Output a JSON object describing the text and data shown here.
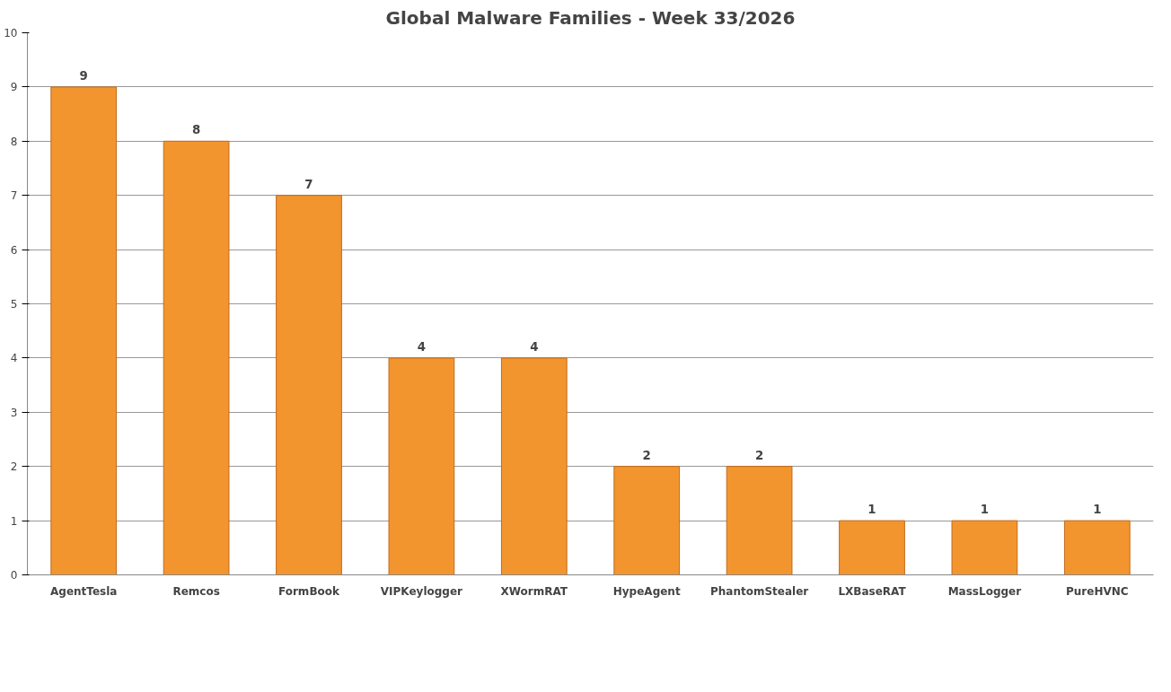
{
  "chart_data": {
    "type": "bar",
    "title": "Global Malware Families - Week 33/2026",
    "categories": [
      "AgentTesla",
      "Remcos",
      "FormBook",
      "VIPKeylogger",
      "XWormRAT",
      "HypeAgent",
      "PhantomStealer",
      "LXBaseRAT",
      "MassLogger",
      "PureHVNC"
    ],
    "values": [
      9,
      8,
      7,
      4,
      4,
      2,
      2,
      1,
      1,
      1
    ],
    "color": "#f3952e",
    "ylim": [
      0,
      10
    ],
    "yticks": [
      0,
      1,
      2,
      3,
      4,
      5,
      6,
      7,
      8,
      9,
      10
    ],
    "grid": "y",
    "data_labels": true
  }
}
